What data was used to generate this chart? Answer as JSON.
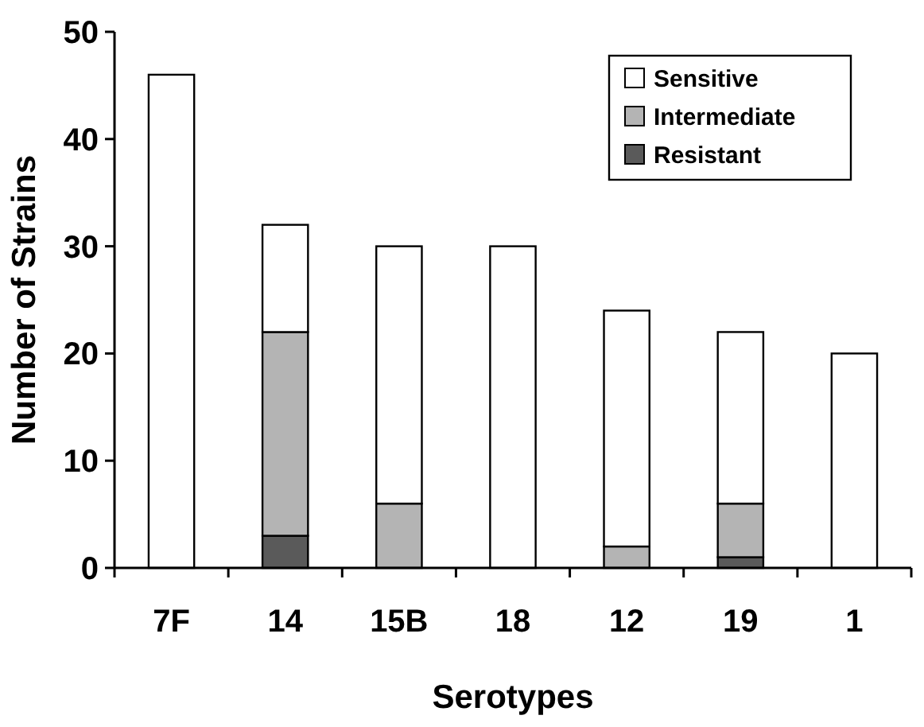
{
  "chart_data": {
    "type": "bar",
    "xlabel": "Serotypes",
    "ylabel": "Number of Strains",
    "categories": [
      "7F",
      "14",
      "15B",
      "18",
      "12",
      "19",
      "1"
    ],
    "stacked": true,
    "series": [
      {
        "name": "Resistant",
        "color": "#5a5a5a",
        "values": [
          0,
          3,
          0,
          0,
          0,
          1,
          0
        ]
      },
      {
        "name": "Intermediate",
        "color": "#b4b4b4",
        "values": [
          0,
          19,
          6,
          0,
          2,
          5,
          0
        ]
      },
      {
        "name": "Sensitive",
        "color": "#ffffff",
        "values": [
          46,
          10,
          24,
          30,
          22,
          16,
          20
        ]
      }
    ],
    "ylim": [
      0,
      50
    ],
    "yticks": [
      0,
      10,
      20,
      30,
      40,
      50
    ],
    "legend": "top right"
  }
}
